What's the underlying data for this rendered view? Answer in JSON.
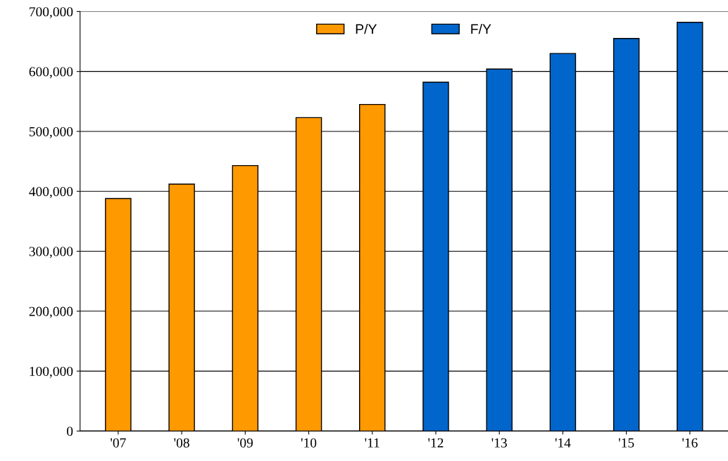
{
  "chart_data": {
    "type": "bar",
    "categories": [
      "'07",
      "'08",
      "'09",
      "'10",
      "'11",
      "'12",
      "'13",
      "'14",
      "'15",
      "'16"
    ],
    "series": [
      {
        "name": "P/Y",
        "color": "#ff9900",
        "values": [
          388000,
          412000,
          443000,
          523000,
          545000,
          null,
          null,
          null,
          null,
          null
        ]
      },
      {
        "name": "F/Y",
        "color": "#0066cc",
        "values": [
          null,
          null,
          null,
          null,
          null,
          582000,
          604000,
          630000,
          655000,
          682000
        ]
      }
    ],
    "ylim": [
      0,
      700000
    ],
    "yticks": [
      {
        "value": 0,
        "label": "0"
      },
      {
        "value": 100000,
        "label": "100,000"
      },
      {
        "value": 200000,
        "label": "200,000"
      },
      {
        "value": 300000,
        "label": "300,000"
      },
      {
        "value": 400000,
        "label": "400,000"
      },
      {
        "value": 500000,
        "label": "500,000"
      },
      {
        "value": 600000,
        "label": "600,000"
      },
      {
        "value": 700000,
        "label": "700,000"
      }
    ],
    "grid": "y",
    "legend": "top"
  }
}
